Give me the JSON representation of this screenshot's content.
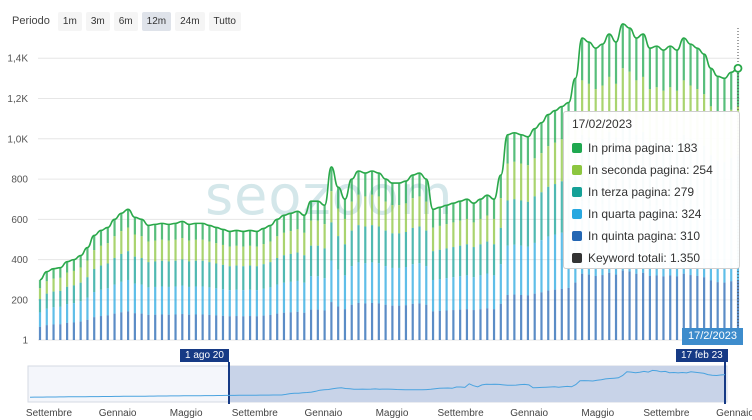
{
  "toolbar": {
    "label": "Periodo",
    "buttons": [
      "1m",
      "3m",
      "6m",
      "12m",
      "24m",
      "Tutto"
    ],
    "active": "12m"
  },
  "watermark": "seozoom",
  "tooltip": {
    "date": "17/02/2023",
    "rows": [
      {
        "label": "In prima pagina: 183",
        "color": "#1fa84f"
      },
      {
        "label": "In seconda pagina: 254",
        "color": "#8cc63f"
      },
      {
        "label": "In terza pagina: 279",
        "color": "#15a197"
      },
      {
        "label": "In quarta pagina: 324",
        "color": "#29a8e0"
      },
      {
        "label": "In quinta pagina: 310",
        "color": "#2466b3"
      },
      {
        "label": "Keyword totali: 1.350",
        "color": "#333333"
      }
    ]
  },
  "date_badge": "17/2/2023",
  "navigator": {
    "flag_start": "1 ago 20",
    "flag_end": "17 feb 23",
    "month_labels": [
      "Settembre",
      "Gennaio",
      "Maggio",
      "Settembre",
      "Gennaio",
      "Maggio",
      "Settembre",
      "Gennaio",
      "Maggio",
      "Settembre",
      "Gennaio"
    ]
  },
  "chart_data": {
    "type": "area",
    "stacked": true,
    "title": "",
    "xlabel": "",
    "ylabel": "",
    "x_range": [
      "2022-02",
      "2023-02-17"
    ],
    "ylim": [
      1,
      1550
    ],
    "yticks": [
      1,
      200,
      400,
      600,
      800,
      1000,
      1200,
      1400
    ],
    "ytick_labels": [
      "1",
      "200",
      "400",
      "600",
      "800",
      "1,0K",
      "1,2K",
      "1,4K"
    ],
    "grid": true,
    "legend": "none",
    "series": [
      {
        "name": "In prima pagina",
        "color": "#1fa84f"
      },
      {
        "name": "In seconda pagina",
        "color": "#8cc63f"
      },
      {
        "name": "In terza pagina",
        "color": "#15a197"
      },
      {
        "name": "In quarta pagina",
        "color": "#29a8e0"
      },
      {
        "name": "In quinta pagina",
        "color": "#2466b3"
      }
    ],
    "total": [
      300,
      340,
      355,
      360,
      390,
      400,
      420,
      460,
      520,
      545,
      560,
      600,
      630,
      650,
      610,
      600,
      570,
      575,
      580,
      575,
      580,
      590,
      575,
      580,
      580,
      570,
      560,
      550,
      540,
      545,
      540,
      545,
      540,
      555,
      570,
      600,
      620,
      630,
      640,
      620,
      690,
      690,
      670,
      860,
      760,
      700,
      800,
      840,
      830,
      840,
      830,
      800,
      780,
      780,
      790,
      820,
      830,
      800,
      650,
      660,
      670,
      680,
      690,
      700,
      680,
      700,
      720,
      700,
      820,
      1020,
      1030,
      1020,
      1010,
      1050,
      1080,
      1120,
      1140,
      1160,
      1180,
      1300,
      1500,
      1480,
      1450,
      1470,
      1520,
      1480,
      1570,
      1550,
      1500,
      1520,
      1450,
      1460,
      1440,
      1460,
      1440,
      1500,
      1470,
      1450,
      1420,
      1350,
      1310,
      1300,
      1330,
      1350
    ]
  }
}
